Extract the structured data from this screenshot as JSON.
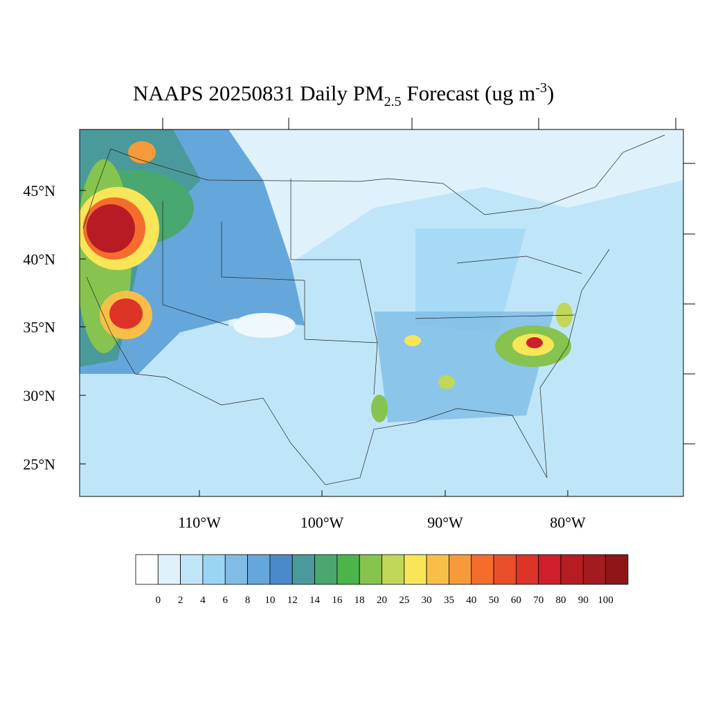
{
  "title": {
    "main": "NAAPS 20250831 Daily PM",
    "subscript": "2.5",
    "after": " Forecast (ug m",
    "superscript": "-3",
    "end": ")"
  },
  "lat_labels": [
    "45°N",
    "40°N",
    "35°N",
    "30°N",
    "25°N"
  ],
  "lon_labels": [
    "110°W",
    "100°W",
    "90°W",
    "80°W"
  ],
  "colorbar": {
    "levels": [
      0,
      2,
      4,
      6,
      8,
      10,
      12,
      14,
      16,
      18,
      20,
      25,
      30,
      35,
      40,
      50,
      60,
      70,
      80,
      90,
      100
    ],
    "colors": [
      "#ffffff",
      "#dff2fb",
      "#bfe6f8",
      "#9cd5f3",
      "#80bde6",
      "#65a7db",
      "#4a8ac8",
      "#4a9a9c",
      "#48a870",
      "#4bb54a",
      "#86c44f",
      "#c0d758",
      "#f8e658",
      "#f8bf48",
      "#f79a3b",
      "#f46d2d",
      "#e84e2a",
      "#dc3428",
      "#d01f2a",
      "#b71c24",
      "#a31a20",
      "#8e1619"
    ]
  }
}
